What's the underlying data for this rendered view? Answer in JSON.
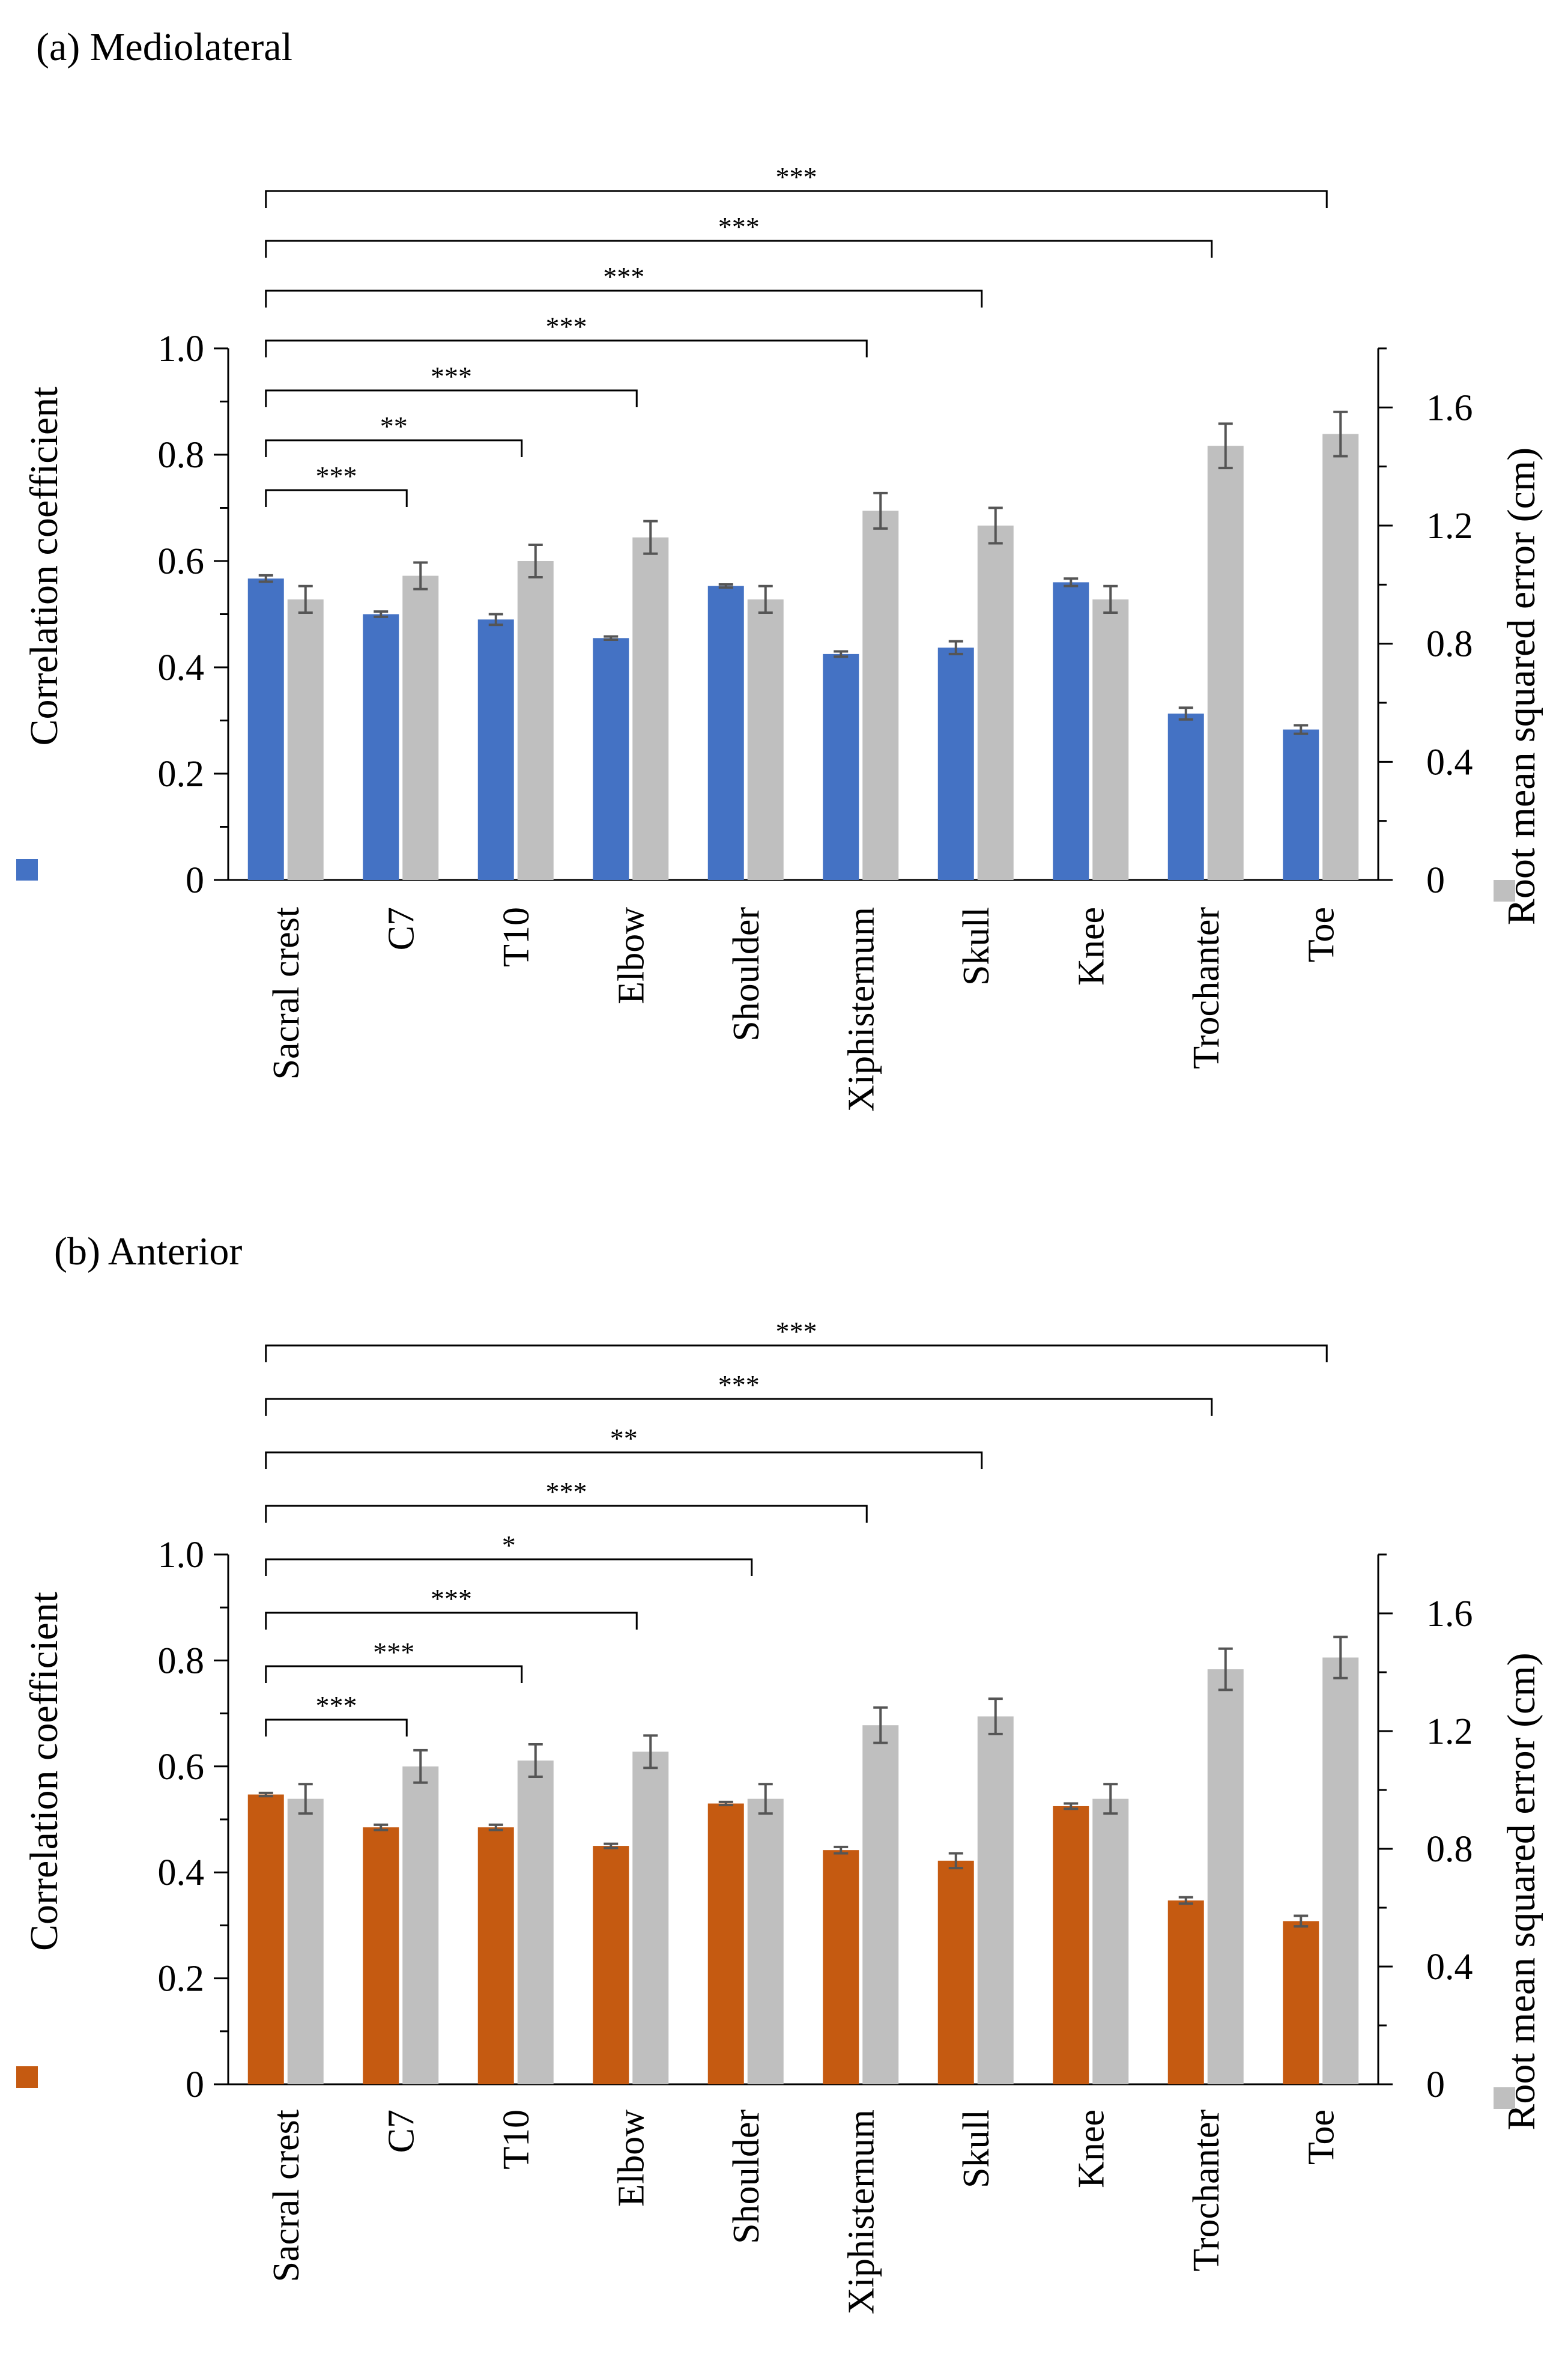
{
  "chart_data": [
    {
      "type": "bar",
      "title": "(a) Mediolateral",
      "categories": [
        "Sacral crest",
        "C7",
        "T10",
        "Elbow",
        "Shoulder",
        "Xiphisternum",
        "Skull",
        "Knee",
        "Trochanter",
        "Toe"
      ],
      "y_left": {
        "label": "Correlation coefficient",
        "range": [
          0,
          1.0
        ],
        "ticks": [
          "0",
          "0.2",
          "0.4",
          "0.6",
          "0.8",
          "1.0"
        ]
      },
      "y_right": {
        "label": "Root mean squared error (cm)",
        "range": [
          0,
          1.8
        ],
        "ticks": [
          "0",
          "0.4",
          "0.8",
          "1.2",
          "1.6"
        ]
      },
      "series": [
        {
          "axis": "left",
          "color": "#4472c4",
          "values": [
            0.567,
            0.5,
            0.49,
            0.455,
            0.553,
            0.425,
            0.437,
            0.56,
            0.313,
            0.283
          ],
          "errors": [
            0.006,
            0.005,
            0.01,
            0.003,
            0.003,
            0.005,
            0.012,
            0.007,
            0.011,
            0.008
          ]
        },
        {
          "axis": "right",
          "color": "#bfbfbf",
          "values": [
            0.95,
            1.03,
            1.08,
            1.16,
            0.95,
            1.25,
            1.2,
            0.95,
            1.47,
            1.51
          ],
          "errors": [
            0.045,
            0.045,
            0.055,
            0.055,
            0.045,
            0.06,
            0.06,
            0.045,
            0.075,
            0.075
          ]
        }
      ],
      "significance": [
        {
          "to": "C7",
          "label": "***"
        },
        {
          "to": "T10",
          "label": "**"
        },
        {
          "to": "Elbow",
          "label": "***"
        },
        {
          "to": "Xiphisternum",
          "label": "***"
        },
        {
          "to": "Skull",
          "label": "***"
        },
        {
          "to": "Trochanter",
          "label": "***"
        },
        {
          "to": "Toe",
          "label": "***"
        }
      ]
    },
    {
      "type": "bar",
      "title": "(b) Anterior",
      "categories": [
        "Sacral crest",
        "C7",
        "T10",
        "Elbow",
        "Shoulder",
        "Xiphisternum",
        "Skull",
        "Knee",
        "Trochanter",
        "Toe"
      ],
      "y_left": {
        "label": "Correlation coefficient",
        "range": [
          0,
          1.0
        ],
        "ticks": [
          "0",
          "0.2",
          "0.4",
          "0.6",
          "0.8",
          "1.0"
        ]
      },
      "y_right": {
        "label": "Root mean squared error (cm)",
        "range": [
          0,
          1.8
        ],
        "ticks": [
          "0",
          "0.4",
          "0.8",
          "1.2",
          "1.6"
        ]
      },
      "series": [
        {
          "axis": "left",
          "color": "#c55a11",
          "values": [
            0.547,
            0.485,
            0.485,
            0.45,
            0.53,
            0.442,
            0.422,
            0.525,
            0.347,
            0.308
          ],
          "errors": [
            0.003,
            0.005,
            0.005,
            0.004,
            0.003,
            0.006,
            0.014,
            0.005,
            0.006,
            0.01
          ]
        },
        {
          "axis": "right",
          "color": "#bfbfbf",
          "values": [
            0.97,
            1.08,
            1.1,
            1.13,
            0.97,
            1.22,
            1.25,
            0.97,
            1.41,
            1.45
          ],
          "errors": [
            0.05,
            0.055,
            0.055,
            0.055,
            0.05,
            0.06,
            0.06,
            0.05,
            0.07,
            0.07
          ]
        }
      ],
      "significance": [
        {
          "to": "C7",
          "label": "***"
        },
        {
          "to": "T10",
          "label": "***"
        },
        {
          "to": "Elbow",
          "label": "***"
        },
        {
          "to": "Shoulder",
          "label": "*"
        },
        {
          "to": "Xiphisternum",
          "label": "***"
        },
        {
          "to": "Skull",
          "label": "**"
        },
        {
          "to": "Trochanter",
          "label": "***"
        },
        {
          "to": "Toe",
          "label": "***"
        }
      ]
    }
  ]
}
